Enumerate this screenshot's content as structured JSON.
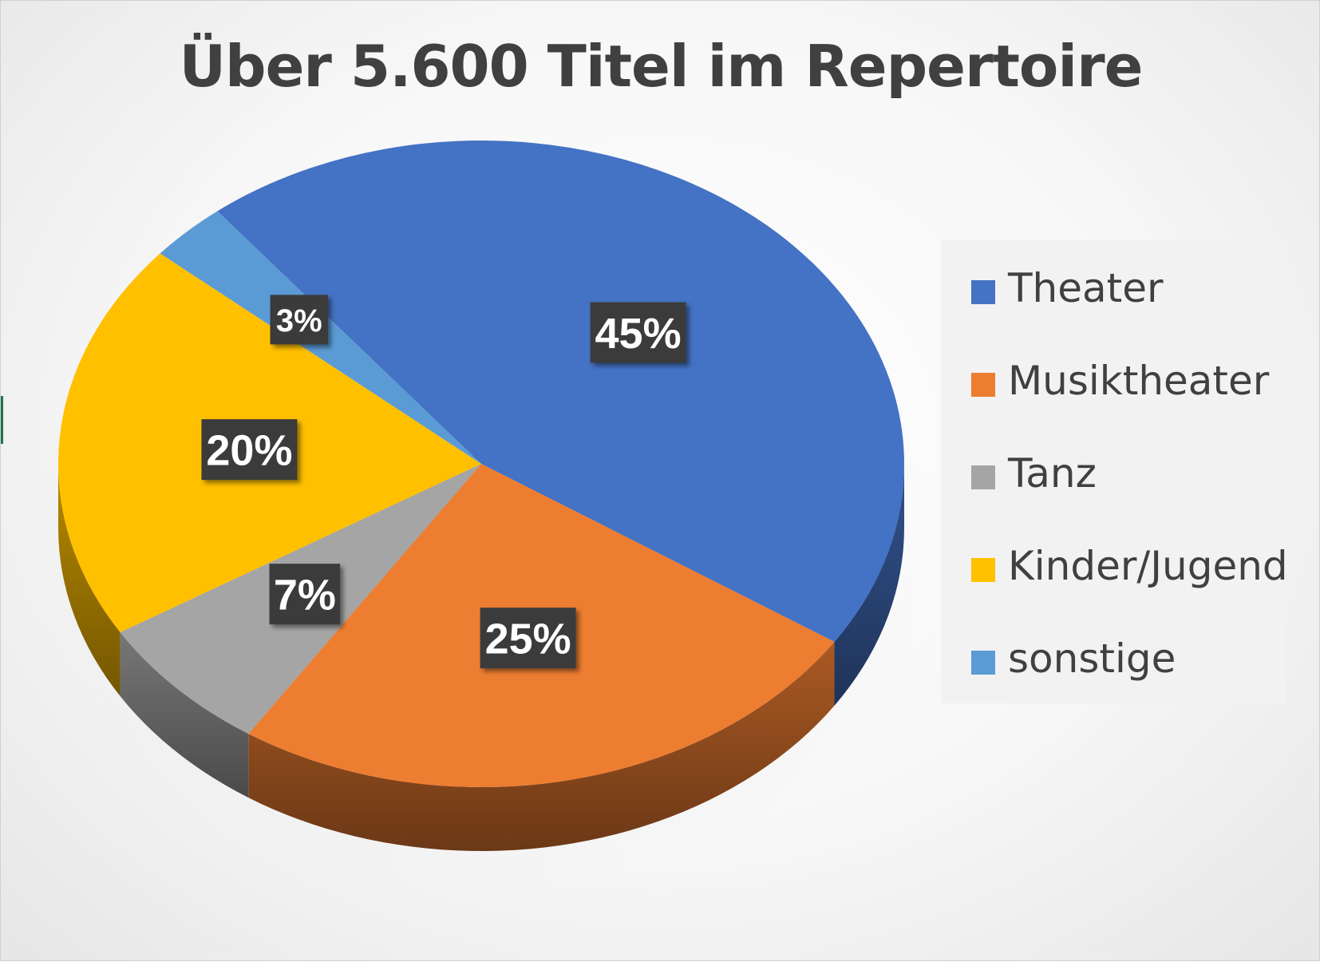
{
  "chart_data": {
    "type": "pie",
    "title": "Über 5.600 Titel im Repertoire",
    "legend_position": "right",
    "series": [
      {
        "name": "Theater",
        "value": 45,
        "label": "45%",
        "color": "#4472C4"
      },
      {
        "name": "Musiktheater",
        "value": 25,
        "label": "25%",
        "color": "#ED7D31"
      },
      {
        "name": "Tanz",
        "value": 7,
        "label": "7%",
        "color": "#A5A5A5"
      },
      {
        "name": "Kinder/Jugend",
        "value": 20,
        "label": "20%",
        "color": "#FFC000"
      },
      {
        "name": "sonstige",
        "value": 3,
        "label": "3%",
        "color": "#5B9BD5"
      }
    ]
  }
}
